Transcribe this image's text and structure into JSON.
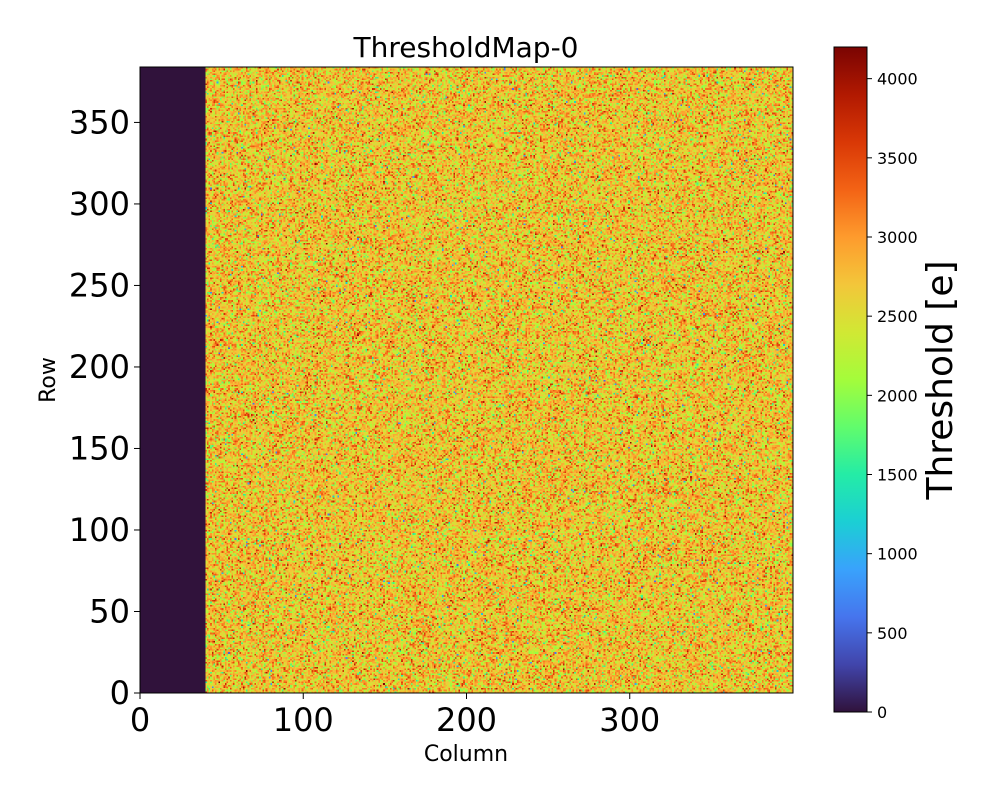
{
  "chart_data": {
    "type": "heatmap",
    "title": "ThresholdMap-0",
    "xlabel": "Column",
    "ylabel": "Row",
    "xlim": [
      0,
      400
    ],
    "ylim": [
      0,
      384
    ],
    "x_ticks": [
      "0",
      "100",
      "200",
      "300"
    ],
    "y_ticks": [
      "0",
      "50",
      "100",
      "150",
      "200",
      "250",
      "300",
      "350"
    ],
    "colorbar": {
      "label": "Threshold [e]",
      "range": [
        0,
        4200
      ],
      "ticks": [
        "0",
        "500",
        "1000",
        "1500",
        "2000",
        "2500",
        "3000",
        "3500",
        "4000"
      ],
      "colormap": "turbo",
      "colors": [
        "#30123b",
        "#4145ab",
        "#4675ed",
        "#39a2fc",
        "#1bcfd4",
        "#24eca6",
        "#61fc6c",
        "#a4fc3b",
        "#d1e834",
        "#f3c63a",
        "#fe9b2d",
        "#f36315",
        "#d93806",
        "#b11901",
        "#7a0402"
      ]
    },
    "regions": [
      {
        "columns": [
          0,
          40
        ],
        "rows": [
          0,
          384
        ],
        "value": 0
      },
      {
        "columns": [
          40,
          400
        ],
        "rows": [
          0,
          384
        ],
        "value_mean": 2700,
        "value_spread": 600
      }
    ],
    "grid": false
  }
}
